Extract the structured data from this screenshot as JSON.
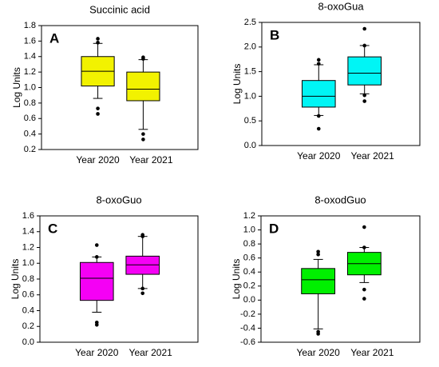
{
  "chart_data": [
    {
      "type": "box",
      "title": "Succinic acid",
      "panel_label": "A",
      "y_label": "Log Units",
      "color": "#f2f200",
      "categories": [
        "Year 2020",
        "Year 2021"
      ],
      "boxes": [
        {
          "whisker_low": 0.86,
          "q1": 1.02,
          "median": 1.21,
          "q3": 1.4,
          "whisker_high": 1.57,
          "outliers": [
            1.63,
            1.58,
            0.73,
            0.66
          ]
        },
        {
          "whisker_low": 0.46,
          "q1": 0.83,
          "median": 0.98,
          "q3": 1.2,
          "whisker_high": 1.36,
          "outliers": [
            1.39,
            1.37,
            0.4,
            0.33
          ]
        }
      ],
      "ylim": [
        0.2,
        1.8
      ],
      "yticks": [
        0.2,
        0.4,
        0.6,
        0.8,
        {
          "value": 1,
          "label": "1.0"
        },
        1.2,
        1.4,
        1.6,
        1.8
      ]
    },
    {
      "type": "box",
      "title": "8-oxoGua",
      "panel_label": "B",
      "y_label": "Log Units",
      "color": "#00f5f5",
      "categories": [
        "Year 2020",
        "Year 2021"
      ],
      "boxes": [
        {
          "whisker_low": 0.61,
          "q1": 0.78,
          "median": 1.0,
          "q3": 1.32,
          "whisker_high": 1.64,
          "outliers": [
            1.74,
            1.66,
            0.6,
            0.34
          ]
        },
        {
          "whisker_low": 1.05,
          "q1": 1.23,
          "median": 1.47,
          "q3": 1.8,
          "whisker_high": 2.03,
          "outliers": [
            2.37,
            2.03,
            1.02,
            0.9
          ]
        }
      ],
      "ylim": [
        0,
        2.5
      ],
      "yticks": [
        {
          "value": 0,
          "label": "0.0"
        },
        0.5,
        {
          "value": 1,
          "label": "1.0"
        },
        1.5,
        {
          "value": 2,
          "label": "2.0"
        },
        2.5
      ]
    },
    {
      "type": "box",
      "title": "8-oxoGuo",
      "panel_label": "C",
      "y_label": "Log Units",
      "color": "#f500f5",
      "categories": [
        "Year 2020",
        "Year 2021"
      ],
      "boxes": [
        {
          "whisker_low": 0.38,
          "q1": 0.53,
          "median": 0.81,
          "q3": 1.01,
          "whisker_high": 1.08,
          "outliers": [
            1.23,
            1.08,
            0.25,
            0.22
          ]
        },
        {
          "whisker_low": 0.68,
          "q1": 0.86,
          "median": 0.98,
          "q3": 1.09,
          "whisker_high": 1.34,
          "outliers": [
            1.36,
            1.34,
            0.68,
            0.62
          ]
        }
      ],
      "ylim": [
        0,
        1.6
      ],
      "yticks": [
        {
          "value": 0,
          "label": "0.0"
        },
        0.2,
        0.4,
        0.6,
        0.8,
        {
          "value": 1,
          "label": "1.0"
        },
        1.2,
        1.4,
        1.6
      ]
    },
    {
      "type": "box",
      "title": "8-oxodGuo",
      "panel_label": "D",
      "y_label": "Log Units",
      "color": "#00f000",
      "categories": [
        "Year 2020",
        "Year 2021"
      ],
      "boxes": [
        {
          "whisker_low": -0.41,
          "q1": 0.09,
          "median": 0.29,
          "q3": 0.45,
          "whisker_high": 0.58,
          "outliers": [
            0.69,
            0.65,
            -0.45,
            -0.48
          ]
        },
        {
          "whisker_low": 0.25,
          "q1": 0.36,
          "median": 0.52,
          "q3": 0.68,
          "whisker_high": 0.75,
          "outliers": [
            1.04,
            0.75,
            0.15,
            0.02
          ]
        }
      ],
      "ylim": [
        -0.6,
        1.2
      ],
      "yticks": [
        -0.6,
        -0.4,
        -0.2,
        {
          "value": 0,
          "label": "0.0"
        },
        0.2,
        0.4,
        0.6,
        0.8,
        {
          "value": 1,
          "label": "1.0"
        },
        1.2
      ]
    }
  ]
}
